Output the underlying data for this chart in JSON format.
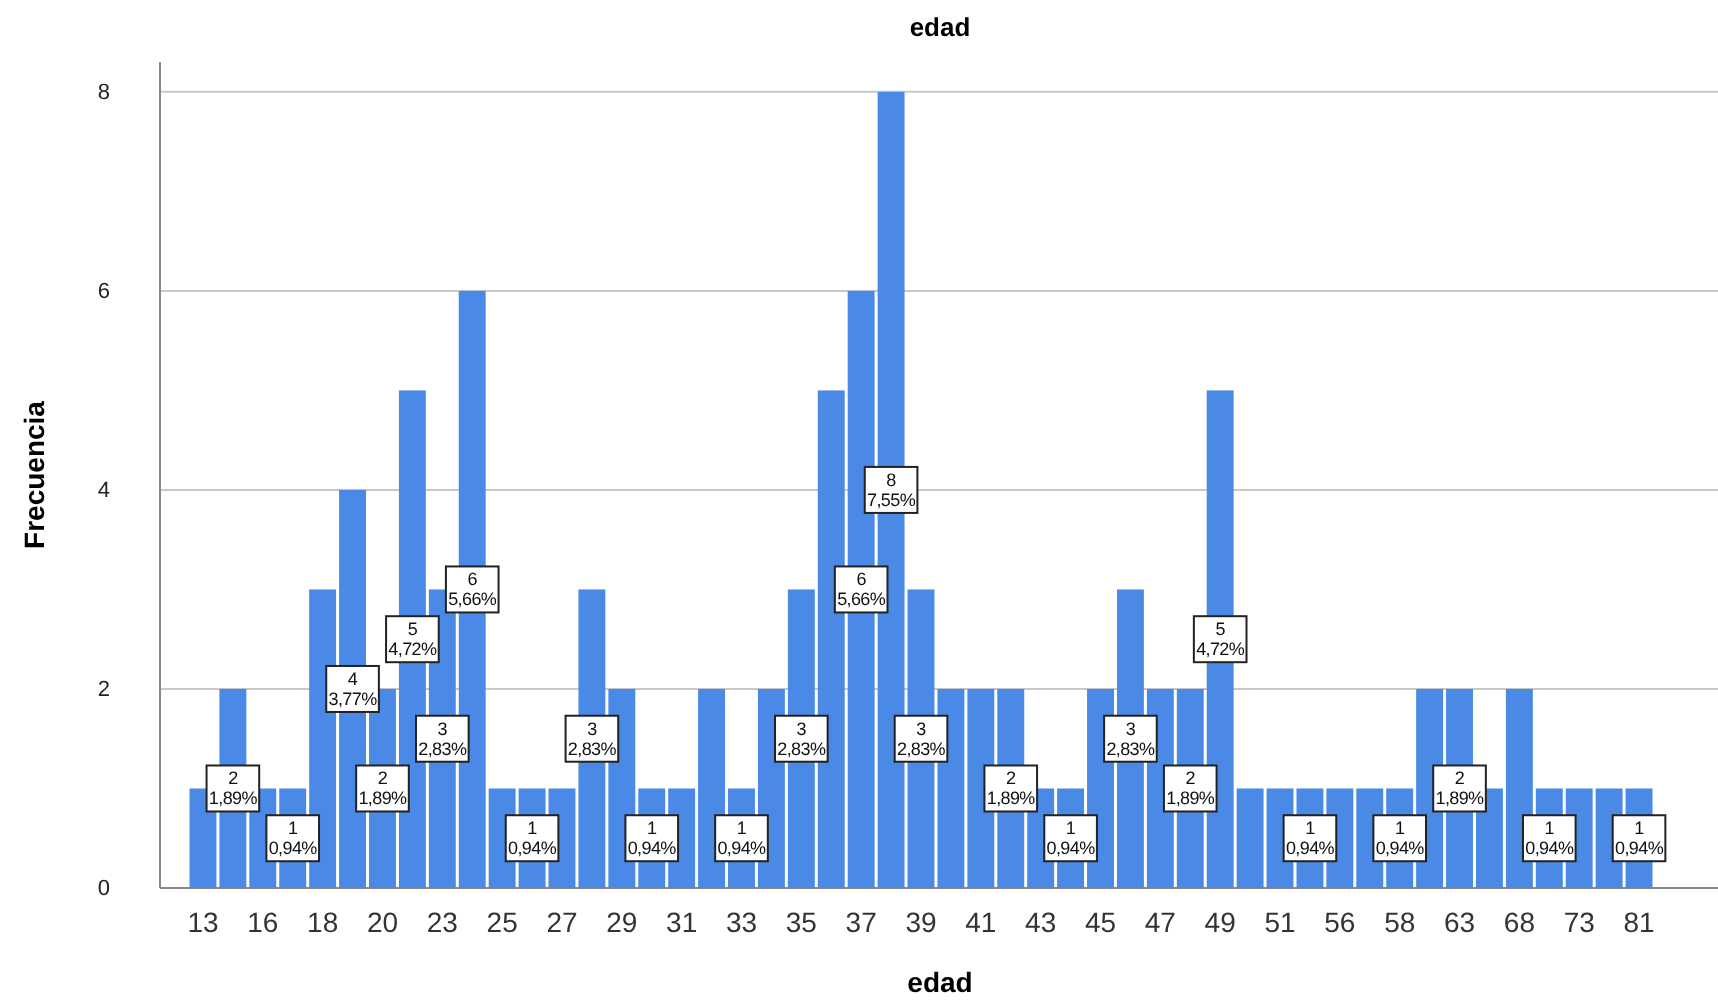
{
  "chart_data": {
    "type": "bar",
    "title": "edad",
    "xlabel": "edad",
    "ylabel": "Frecuencia",
    "categories": [
      "13",
      null,
      "16",
      null,
      "18",
      null,
      "20",
      null,
      "23",
      null,
      "25",
      null,
      "27",
      null,
      "29",
      null,
      "31",
      null,
      "33",
      null,
      "35",
      null,
      "37",
      null,
      "39",
      null,
      "41",
      null,
      "43",
      null,
      "45",
      null,
      "47",
      null,
      "49",
      null,
      "51",
      null,
      "56",
      null,
      "58",
      null,
      "63",
      null,
      "68",
      null,
      "73",
      null,
      "81"
    ],
    "values": [
      1,
      2,
      1,
      1,
      3,
      4,
      2,
      5,
      3,
      6,
      1,
      1,
      1,
      3,
      2,
      1,
      1,
      2,
      1,
      2,
      3,
      5,
      6,
      8,
      3,
      2,
      2,
      2,
      1,
      1,
      2,
      3,
      2,
      2,
      5,
      1,
      1,
      1,
      1,
      1,
      1,
      2,
      2,
      1,
      2,
      1,
      1,
      1,
      1
    ],
    "value_labels": [
      null,
      "2\n1,89%",
      null,
      "1\n0,94%",
      null,
      "4\n3,77%",
      "2\n1,89%",
      "5\n4,72%",
      "3\n2,83%",
      "6\n5,66%",
      null,
      "1\n0,94%",
      null,
      "3\n2,83%",
      null,
      "1\n0,94%",
      null,
      null,
      "1\n0,94%",
      null,
      "3\n2,83%",
      null,
      "6\n5,66%",
      "8\n7,55%",
      "3\n2,83%",
      null,
      null,
      "2\n1,89%",
      null,
      "1\n0,94%",
      null,
      "3\n2,83%",
      null,
      "2\n1,89%",
      "5\n4,72%",
      null,
      null,
      "1\n0,94%",
      null,
      null,
      "1\n0,94%",
      null,
      "2\n1,89%",
      null,
      null,
      "1\n0,94%",
      null,
      null,
      "1\n0,94%"
    ],
    "color": "#4a8ae6",
    "ylim": [
      0,
      8.3
    ],
    "yticks": [
      0,
      2,
      4,
      6,
      8
    ],
    "grid": "y"
  }
}
